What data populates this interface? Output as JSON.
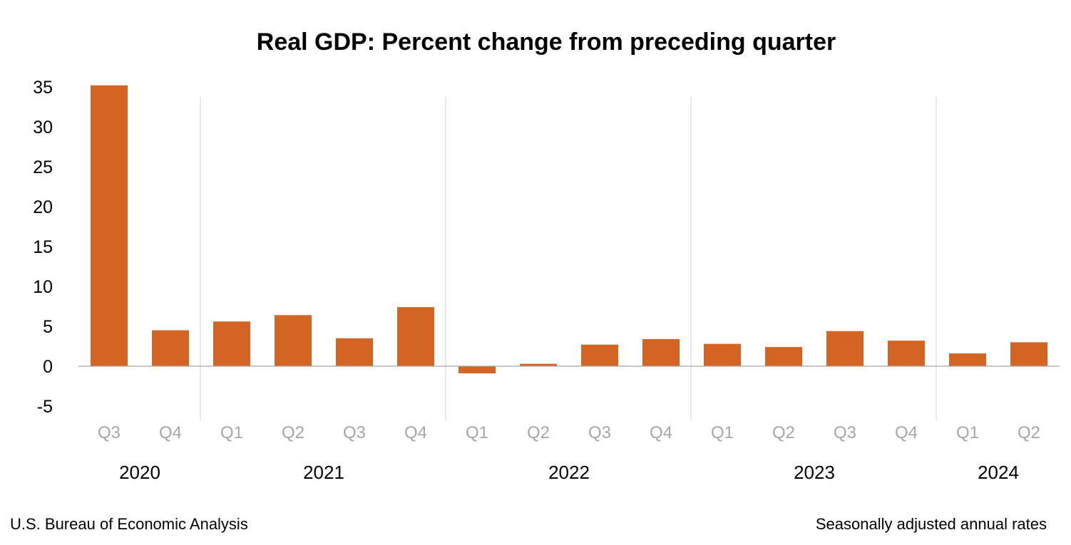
{
  "chart_data": {
    "type": "bar",
    "title": "Real GDP: Percent change from preceding quarter",
    "categories": [
      "Q3",
      "Q4",
      "Q1",
      "Q2",
      "Q3",
      "Q4",
      "Q1",
      "Q2",
      "Q3",
      "Q4",
      "Q1",
      "Q2",
      "Q3",
      "Q4",
      "Q1",
      "Q2"
    ],
    "years": [
      {
        "label": "2020",
        "quarters": 2
      },
      {
        "label": "2021",
        "quarters": 4
      },
      {
        "label": "2022",
        "quarters": 4
      },
      {
        "label": "2023",
        "quarters": 4
      },
      {
        "label": "2024",
        "quarters": 2
      }
    ],
    "series": [
      {
        "values": [
          35.2,
          4.5,
          5.6,
          6.4,
          3.5,
          7.4,
          -0.9,
          0.3,
          2.7,
          3.4,
          2.8,
          2.4,
          4.4,
          3.2,
          1.6,
          3.0
        ],
        "color": "#d46424"
      }
    ],
    "ylim": [
      -5,
      35
    ],
    "yticks": [
      35,
      30,
      25,
      20,
      15,
      10,
      5,
      0,
      -5
    ],
    "xlabel": "",
    "ylabel": "",
    "grid": false,
    "legend": "none",
    "axis_color": "#a6a6a6",
    "separator_color": "#d9d9d9"
  },
  "footer": {
    "source": "U.S. Bureau of Economic Analysis",
    "note": "Seasonally adjusted annual rates"
  }
}
